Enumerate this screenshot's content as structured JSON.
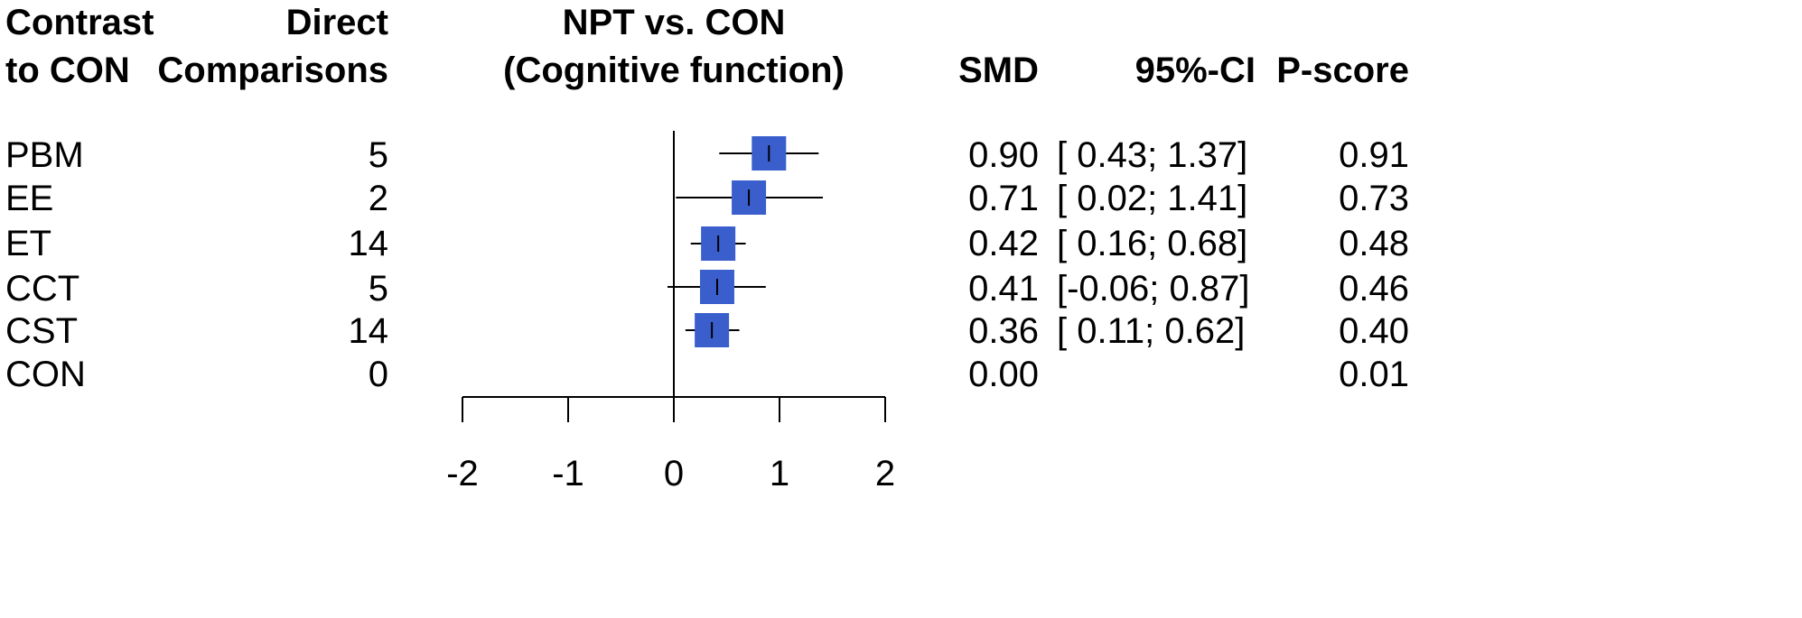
{
  "headers": {
    "contrast_line1": "Contrast",
    "contrast_line2": "to CON",
    "direct_line1": "Direct",
    "direct_line2": "Comparisons",
    "title_line1": "NPT vs. CON",
    "title_line2": "(Cognitive function)",
    "smd": "SMD",
    "ci": "95%-CI",
    "pscore": "P-score"
  },
  "rows": [
    {
      "contrast": "PBM",
      "direct": "5",
      "smd": "0.90",
      "ci": "[ 0.43; 1.37]",
      "pscore": "0.91"
    },
    {
      "contrast": "EE",
      "direct": "2",
      "smd": "0.71",
      "ci": "[ 0.02; 1.41]",
      "pscore": "0.73"
    },
    {
      "contrast": "ET",
      "direct": "14",
      "smd": "0.42",
      "ci": "[ 0.16; 0.68]",
      "pscore": "0.48"
    },
    {
      "contrast": "CCT",
      "direct": "5",
      "smd": "0.41",
      "ci": "[-0.06; 0.87]",
      "pscore": "0.46"
    },
    {
      "contrast": "CST",
      "direct": "14",
      "smd": "0.36",
      "ci": "[ 0.11; 0.62]",
      "pscore": "0.40"
    },
    {
      "contrast": "CON",
      "direct": "0",
      "smd": "0.00",
      "ci": "",
      "pscore": "0.01"
    }
  ],
  "chart_data": {
    "type": "forest",
    "title": "NPT vs. CON (Cognitive function)",
    "xlim": [
      -2,
      2
    ],
    "xticks": [
      "-2",
      "-1",
      "0",
      "1",
      "2"
    ],
    "reference_line": 0,
    "marker_color": "#3a5fcd",
    "series": [
      {
        "label": "PBM",
        "estimate": 0.9,
        "lower": 0.43,
        "upper": 1.37
      },
      {
        "label": "EE",
        "estimate": 0.71,
        "lower": 0.02,
        "upper": 1.41
      },
      {
        "label": "ET",
        "estimate": 0.42,
        "lower": 0.16,
        "upper": 0.68
      },
      {
        "label": "CCT",
        "estimate": 0.41,
        "lower": -0.06,
        "upper": 0.87
      },
      {
        "label": "CST",
        "estimate": 0.36,
        "lower": 0.11,
        "upper": 0.62
      },
      {
        "label": "CON",
        "estimate": 0.0,
        "lower": null,
        "upper": null
      }
    ]
  }
}
